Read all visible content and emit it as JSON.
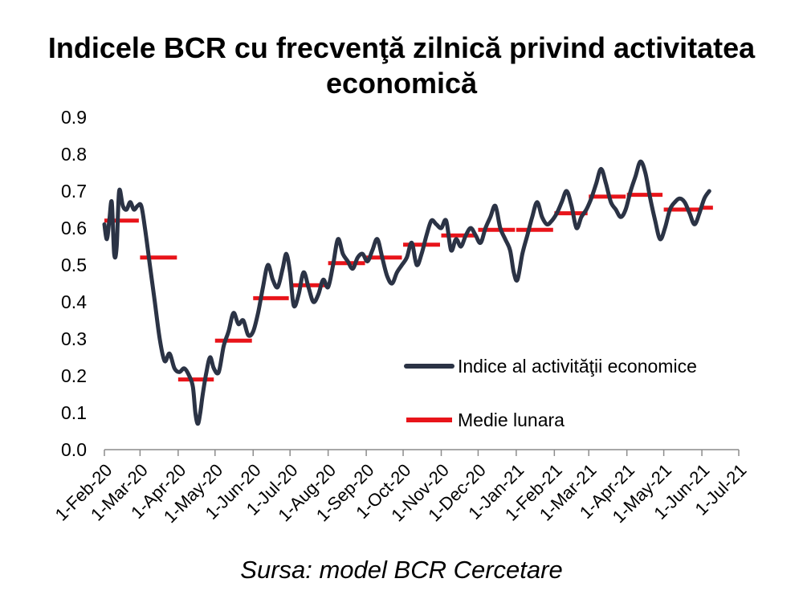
{
  "title": "Indicele BCR cu frecvenţă zilnică privind activitatea economică",
  "source": "Sursa: model BCR Cercetare",
  "chart_data": {
    "type": "line",
    "title": "Indicele BCR cu frecvenţă zilnică privind activitatea economică",
    "ylim": [
      0,
      0.9
    ],
    "yticks": [
      "0.0",
      "0.1",
      "0.2",
      "0.3",
      "0.4",
      "0.5",
      "0.6",
      "0.7",
      "0.8",
      "0.9"
    ],
    "xticks": [
      "1-Feb-20",
      "1-Mar-20",
      "1-Apr-20",
      "1-May-20",
      "1-Jun-20",
      "1-Jul-20",
      "1-Aug-20",
      "1-Sep-20",
      "1-Oct-20",
      "1-Nov-20",
      "1-Dec-20",
      "1-Jan-21",
      "1-Feb-21",
      "1-Mar-21",
      "1-Apr-21",
      "1-May-21",
      "1-Jun-21",
      "1-Jul-21"
    ],
    "legend_position": "right",
    "grid": false,
    "colors": {
      "index": "#2b3345",
      "monthly": "#e8141a"
    },
    "series": [
      {
        "name": "Indice al activităţii economice",
        "points": [
          [
            "2020-02-01",
            0.61
          ],
          [
            "2020-02-03",
            0.57
          ],
          [
            "2020-02-05",
            0.62
          ],
          [
            "2020-02-07",
            0.67
          ],
          [
            "2020-02-09",
            0.53
          ],
          [
            "2020-02-11",
            0.55
          ],
          [
            "2020-02-13",
            0.7
          ],
          [
            "2020-02-16",
            0.66
          ],
          [
            "2020-02-19",
            0.65
          ],
          [
            "2020-02-22",
            0.67
          ],
          [
            "2020-02-25",
            0.65
          ],
          [
            "2020-02-28",
            0.66
          ],
          [
            "2020-03-02",
            0.66
          ],
          [
            "2020-03-05",
            0.6
          ],
          [
            "2020-03-09",
            0.5
          ],
          [
            "2020-03-13",
            0.4
          ],
          [
            "2020-03-17",
            0.3
          ],
          [
            "2020-03-21",
            0.24
          ],
          [
            "2020-03-25",
            0.26
          ],
          [
            "2020-03-29",
            0.22
          ],
          [
            "2020-04-02",
            0.21
          ],
          [
            "2020-04-06",
            0.22
          ],
          [
            "2020-04-10",
            0.2
          ],
          [
            "2020-04-13",
            0.17
          ],
          [
            "2020-04-15",
            0.1
          ],
          [
            "2020-04-17",
            0.07
          ],
          [
            "2020-04-19",
            0.1
          ],
          [
            "2020-04-21",
            0.15
          ],
          [
            "2020-04-24",
            0.21
          ],
          [
            "2020-04-27",
            0.25
          ],
          [
            "2020-04-30",
            0.22
          ],
          [
            "2020-05-04",
            0.21
          ],
          [
            "2020-05-08",
            0.28
          ],
          [
            "2020-05-12",
            0.32
          ],
          [
            "2020-05-16",
            0.37
          ],
          [
            "2020-05-20",
            0.34
          ],
          [
            "2020-05-24",
            0.35
          ],
          [
            "2020-05-28",
            0.31
          ],
          [
            "2020-06-01",
            0.32
          ],
          [
            "2020-06-05",
            0.37
          ],
          [
            "2020-06-09",
            0.44
          ],
          [
            "2020-06-13",
            0.5
          ],
          [
            "2020-06-17",
            0.46
          ],
          [
            "2020-06-21",
            0.44
          ],
          [
            "2020-06-25",
            0.49
          ],
          [
            "2020-06-28",
            0.53
          ],
          [
            "2020-07-01",
            0.48
          ],
          [
            "2020-07-04",
            0.39
          ],
          [
            "2020-07-08",
            0.42
          ],
          [
            "2020-07-12",
            0.48
          ],
          [
            "2020-07-16",
            0.44
          ],
          [
            "2020-07-20",
            0.4
          ],
          [
            "2020-07-24",
            0.42
          ],
          [
            "2020-07-28",
            0.46
          ],
          [
            "2020-08-01",
            0.44
          ],
          [
            "2020-08-05",
            0.5
          ],
          [
            "2020-08-09",
            0.57
          ],
          [
            "2020-08-13",
            0.53
          ],
          [
            "2020-08-17",
            0.51
          ],
          [
            "2020-08-21",
            0.49
          ],
          [
            "2020-08-25",
            0.52
          ],
          [
            "2020-08-29",
            0.53
          ],
          [
            "2020-09-02",
            0.51
          ],
          [
            "2020-09-06",
            0.54
          ],
          [
            "2020-09-10",
            0.57
          ],
          [
            "2020-09-14",
            0.52
          ],
          [
            "2020-09-18",
            0.47
          ],
          [
            "2020-09-22",
            0.45
          ],
          [
            "2020-09-26",
            0.48
          ],
          [
            "2020-09-30",
            0.5
          ],
          [
            "2020-10-04",
            0.52
          ],
          [
            "2020-10-08",
            0.56
          ],
          [
            "2020-10-12",
            0.5
          ],
          [
            "2020-10-16",
            0.53
          ],
          [
            "2020-10-20",
            0.58
          ],
          [
            "2020-10-24",
            0.62
          ],
          [
            "2020-10-28",
            0.61
          ],
          [
            "2020-11-01",
            0.6
          ],
          [
            "2020-11-05",
            0.62
          ],
          [
            "2020-11-09",
            0.54
          ],
          [
            "2020-11-13",
            0.57
          ],
          [
            "2020-11-17",
            0.55
          ],
          [
            "2020-11-21",
            0.58
          ],
          [
            "2020-11-25",
            0.6
          ],
          [
            "2020-11-29",
            0.58
          ],
          [
            "2020-12-03",
            0.56
          ],
          [
            "2020-12-07",
            0.6
          ],
          [
            "2020-12-11",
            0.63
          ],
          [
            "2020-12-15",
            0.66
          ],
          [
            "2020-12-19",
            0.6
          ],
          [
            "2020-12-23",
            0.57
          ],
          [
            "2020-12-27",
            0.54
          ],
          [
            "2020-12-30",
            0.48
          ],
          [
            "2021-01-02",
            0.46
          ],
          [
            "2021-01-06",
            0.53
          ],
          [
            "2021-01-10",
            0.58
          ],
          [
            "2021-01-14",
            0.63
          ],
          [
            "2021-01-18",
            0.67
          ],
          [
            "2021-01-22",
            0.63
          ],
          [
            "2021-01-26",
            0.61
          ],
          [
            "2021-01-30",
            0.62
          ],
          [
            "2021-02-03",
            0.64
          ],
          [
            "2021-02-07",
            0.67
          ],
          [
            "2021-02-11",
            0.7
          ],
          [
            "2021-02-15",
            0.66
          ],
          [
            "2021-02-19",
            0.6
          ],
          [
            "2021-02-23",
            0.63
          ],
          [
            "2021-02-27",
            0.65
          ],
          [
            "2021-03-03",
            0.68
          ],
          [
            "2021-03-07",
            0.72
          ],
          [
            "2021-03-11",
            0.76
          ],
          [
            "2021-03-15",
            0.72
          ],
          [
            "2021-03-19",
            0.67
          ],
          [
            "2021-03-23",
            0.65
          ],
          [
            "2021-03-27",
            0.63
          ],
          [
            "2021-03-31",
            0.65
          ],
          [
            "2021-04-04",
            0.7
          ],
          [
            "2021-04-08",
            0.74
          ],
          [
            "2021-04-12",
            0.78
          ],
          [
            "2021-04-16",
            0.75
          ],
          [
            "2021-04-20",
            0.68
          ],
          [
            "2021-04-24",
            0.62
          ],
          [
            "2021-04-28",
            0.57
          ],
          [
            "2021-05-02",
            0.6
          ],
          [
            "2021-05-06",
            0.65
          ],
          [
            "2021-05-10",
            0.67
          ],
          [
            "2021-05-14",
            0.68
          ],
          [
            "2021-05-18",
            0.67
          ],
          [
            "2021-05-22",
            0.64
          ],
          [
            "2021-05-26",
            0.61
          ],
          [
            "2021-05-30",
            0.64
          ],
          [
            "2021-06-03",
            0.68
          ],
          [
            "2021-06-07",
            0.7
          ]
        ]
      },
      {
        "name": "Medie lunara",
        "segments": [
          [
            "2020-02-01",
            "2020-02-29",
            0.62
          ],
          [
            "2020-03-01",
            "2020-03-31",
            0.52
          ],
          [
            "2020-04-01",
            "2020-04-30",
            0.19
          ],
          [
            "2020-05-01",
            "2020-05-31",
            0.295
          ],
          [
            "2020-06-01",
            "2020-06-30",
            0.41
          ],
          [
            "2020-07-01",
            "2020-07-31",
            0.445
          ],
          [
            "2020-08-01",
            "2020-08-31",
            0.505
          ],
          [
            "2020-09-01",
            "2020-09-30",
            0.52
          ],
          [
            "2020-10-01",
            "2020-10-31",
            0.555
          ],
          [
            "2020-11-01",
            "2020-11-30",
            0.58
          ],
          [
            "2020-12-01",
            "2020-12-31",
            0.595
          ],
          [
            "2021-01-01",
            "2021-01-31",
            0.595
          ],
          [
            "2021-02-01",
            "2021-02-28",
            0.64
          ],
          [
            "2021-03-01",
            "2021-03-31",
            0.685
          ],
          [
            "2021-04-01",
            "2021-04-30",
            0.69
          ],
          [
            "2021-05-01",
            "2021-05-31",
            0.65
          ],
          [
            "2021-06-01",
            "2021-06-10",
            0.655
          ]
        ]
      }
    ]
  }
}
